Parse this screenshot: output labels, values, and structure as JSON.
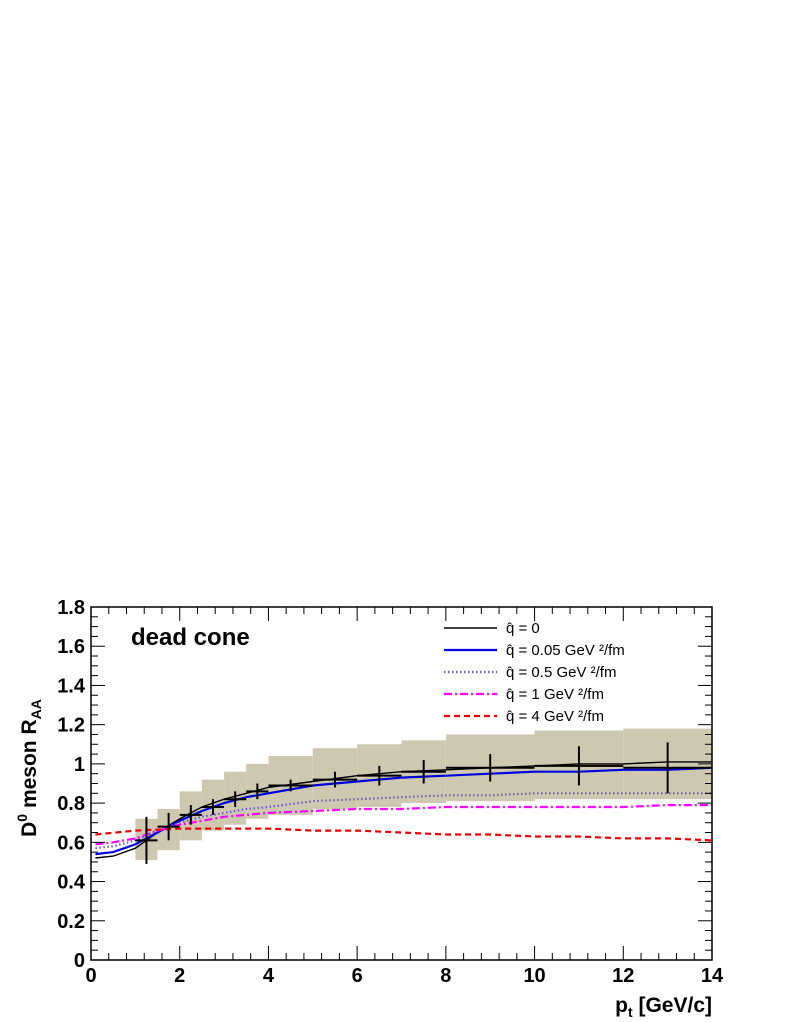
{
  "chart_data": {
    "type": "line",
    "annotation": "dead cone",
    "xlabel_main": "p",
    "xlabel_sub": "t",
    "xlabel_unit": " [GeV/c]",
    "ylabel_main": "D",
    "ylabel_sup": "0",
    "ylabel_rest": " meson R",
    "ylabel_sub": "AA",
    "xlim": [
      0,
      14
    ],
    "ylim": [
      0,
      1.8
    ],
    "xticks": [
      "0",
      "2",
      "4",
      "6",
      "8",
      "10",
      "12",
      "14"
    ],
    "yticks": [
      "0",
      "0.2",
      "0.4",
      "0.6",
      "0.8",
      "1",
      "1.2",
      "1.4",
      "1.6",
      "1.8"
    ],
    "legend_position": "top-right",
    "series": [
      {
        "legend": "q̂ = 0",
        "color": "#000000",
        "style": "solid",
        "x": [
          0.1,
          0.5,
          1.0,
          1.5,
          2.0,
          2.5,
          3.0,
          3.5,
          4.0,
          5.0,
          6.0,
          7.0,
          8.0,
          9.0,
          10.0,
          11.0,
          12.0,
          13.0,
          14.0
        ],
        "y": [
          0.52,
          0.53,
          0.57,
          0.65,
          0.72,
          0.78,
          0.82,
          0.85,
          0.88,
          0.91,
          0.94,
          0.96,
          0.97,
          0.98,
          0.99,
          1.0,
          1.0,
          1.01,
          1.01
        ]
      },
      {
        "legend": "q̂ = 0.05 GeV ²/fm",
        "color": "#0000dd",
        "style": "solid",
        "x": [
          0.1,
          0.5,
          1.0,
          1.5,
          2.0,
          2.5,
          3.0,
          3.5,
          4.0,
          5.0,
          6.0,
          7.0,
          8.0,
          9.0,
          10.0,
          11.0,
          12.0,
          13.0,
          14.0
        ],
        "y": [
          0.54,
          0.55,
          0.59,
          0.65,
          0.71,
          0.76,
          0.8,
          0.83,
          0.85,
          0.89,
          0.91,
          0.93,
          0.94,
          0.95,
          0.96,
          0.96,
          0.97,
          0.97,
          0.98
        ]
      },
      {
        "legend": "q̂ = 0.5 GeV ²/fm",
        "color": "#6a5acd",
        "style": "dotted",
        "x": [
          0.1,
          0.5,
          1.0,
          1.5,
          2.0,
          2.5,
          3.0,
          3.5,
          4.0,
          5.0,
          6.0,
          7.0,
          8.0,
          9.0,
          10.0,
          11.0,
          12.0,
          13.0,
          14.0
        ],
        "y": [
          0.57,
          0.58,
          0.61,
          0.66,
          0.7,
          0.73,
          0.75,
          0.77,
          0.78,
          0.81,
          0.82,
          0.83,
          0.84,
          0.84,
          0.85,
          0.85,
          0.85,
          0.85,
          0.85
        ]
      },
      {
        "legend": "q̂ = 1 GeV ²/fm",
        "color": "#ff00ff",
        "style": "dashdot",
        "x": [
          0.1,
          0.5,
          1.0,
          1.5,
          2.0,
          2.5,
          3.0,
          3.5,
          4.0,
          5.0,
          6.0,
          7.0,
          8.0,
          9.0,
          10.0,
          11.0,
          12.0,
          13.0,
          14.0
        ],
        "y": [
          0.59,
          0.6,
          0.62,
          0.66,
          0.69,
          0.71,
          0.73,
          0.74,
          0.75,
          0.76,
          0.77,
          0.77,
          0.78,
          0.78,
          0.78,
          0.78,
          0.78,
          0.79,
          0.79
        ]
      },
      {
        "legend": "q̂ = 4 GeV ²/fm",
        "color": "#ee0000",
        "style": "dashed",
        "x": [
          0.1,
          1.0,
          2.0,
          3.0,
          4.0,
          5.0,
          6.0,
          7.0,
          8.0,
          9.0,
          10.0,
          11.0,
          12.0,
          13.0,
          14.0
        ],
        "y": [
          0.64,
          0.66,
          0.67,
          0.67,
          0.67,
          0.66,
          0.66,
          0.65,
          0.64,
          0.64,
          0.63,
          0.63,
          0.62,
          0.62,
          0.61
        ]
      }
    ],
    "data_points": {
      "color": "#000000",
      "x": [
        1.25,
        1.75,
        2.25,
        2.75,
        3.25,
        3.75,
        4.5,
        5.5,
        6.5,
        7.5,
        9.0,
        11.0,
        13.0
      ],
      "xerr": [
        0.25,
        0.25,
        0.25,
        0.25,
        0.25,
        0.25,
        0.5,
        0.5,
        0.5,
        0.5,
        1.0,
        1.0,
        1.0
      ],
      "y": [
        0.61,
        0.68,
        0.74,
        0.78,
        0.82,
        0.86,
        0.89,
        0.92,
        0.94,
        0.96,
        0.98,
        0.99,
        0.98
      ],
      "yerr": [
        0.12,
        0.07,
        0.05,
        0.04,
        0.04,
        0.04,
        0.03,
        0.04,
        0.05,
        0.06,
        0.07,
        0.1,
        0.13
      ]
    },
    "systematics": {
      "color": "#cfc8b0",
      "bins": [
        {
          "x0": 1.0,
          "x1": 1.5,
          "lo": 0.51,
          "hi": 0.72
        },
        {
          "x0": 1.5,
          "x1": 2.0,
          "lo": 0.56,
          "hi": 0.77
        },
        {
          "x0": 2.0,
          "x1": 2.5,
          "lo": 0.61,
          "hi": 0.86
        },
        {
          "x0": 2.5,
          "x1": 3.0,
          "lo": 0.66,
          "hi": 0.92
        },
        {
          "x0": 3.0,
          "x1": 3.5,
          "lo": 0.69,
          "hi": 0.96
        },
        {
          "x0": 3.5,
          "x1": 4.0,
          "lo": 0.72,
          "hi": 1.0
        },
        {
          "x0": 4.0,
          "x1": 5.0,
          "lo": 0.74,
          "hi": 1.04
        },
        {
          "x0": 5.0,
          "x1": 6.0,
          "lo": 0.77,
          "hi": 1.08
        },
        {
          "x0": 6.0,
          "x1": 7.0,
          "lo": 0.78,
          "hi": 1.1
        },
        {
          "x0": 7.0,
          "x1": 8.0,
          "lo": 0.8,
          "hi": 1.12
        },
        {
          "x0": 8.0,
          "x1": 10.0,
          "lo": 0.81,
          "hi": 1.15
        },
        {
          "x0": 10.0,
          "x1": 12.0,
          "lo": 0.82,
          "hi": 1.17
        },
        {
          "x0": 12.0,
          "x1": 14.0,
          "lo": 0.82,
          "hi": 1.18
        }
      ]
    }
  }
}
